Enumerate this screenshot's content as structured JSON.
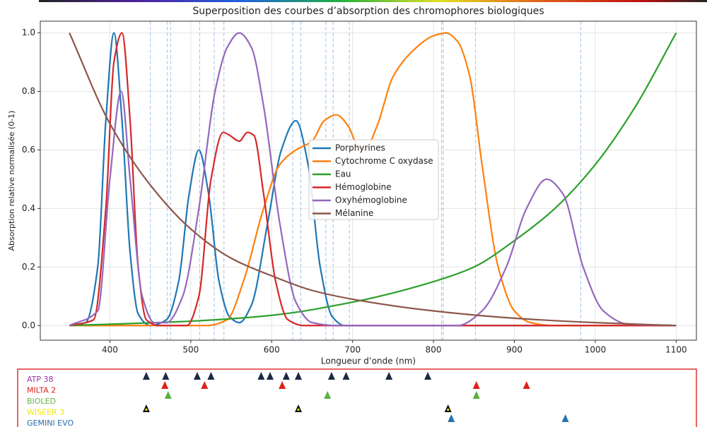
{
  "chart_data": [
    {
      "type": "line",
      "title": "Superposition des courbes d’absorption des chromophores biologiques",
      "xlabel": "Longueur d’onde (nm)",
      "ylabel": "Absorption relative normalisée (0-1)",
      "xlim": [
        314,
        1125
      ],
      "ylim": [
        -0.05,
        1.04
      ],
      "xticks": [
        400,
        500,
        600,
        700,
        800,
        900,
        1000,
        1100
      ],
      "yticks": [
        {
          "value": 0,
          "label": "0.0"
        },
        0.2,
        0.4,
        0.6,
        0.8,
        {
          "value": 1,
          "label": "1.0"
        }
      ],
      "grid": true,
      "legend": "center",
      "reference_lines": {
        "color": "#9fc3e6",
        "x": [
          450,
          471,
          475,
          511,
          529,
          541,
          626,
          636,
          667,
          676,
          696,
          810,
          812,
          852,
          982
        ]
      },
      "series": [
        {
          "name": "Porphyrines",
          "color": "#1f77b4",
          "x": [
            350,
            370,
            385,
            395,
            405,
            415,
            425,
            435,
            450,
            470,
            485,
            498,
            510,
            522,
            535,
            548,
            560,
            575,
            595,
            612,
            630,
            645,
            660,
            675,
            690,
            1100
          ],
          "values": [
            0,
            0.01,
            0.2,
            0.7,
            1.0,
            0.7,
            0.25,
            0.04,
            0,
            0.02,
            0.15,
            0.45,
            0.6,
            0.45,
            0.15,
            0.03,
            0.01,
            0.07,
            0.35,
            0.6,
            0.7,
            0.55,
            0.2,
            0.03,
            0,
            0
          ]
        },
        {
          "name": "Cytochrome C oxydase",
          "color": "#ff7f0e",
          "x": [
            350,
            520,
            545,
            565,
            590,
            610,
            630,
            650,
            665,
            680,
            695,
            705,
            715,
            730,
            750,
            775,
            800,
            815,
            830,
            845,
            860,
            880,
            900,
            920,
            950,
            1100
          ],
          "values": [
            0,
            0,
            0.02,
            0.15,
            0.4,
            0.55,
            0.6,
            0.63,
            0.7,
            0.72,
            0.68,
            0.62,
            0.6,
            0.68,
            0.85,
            0.94,
            0.99,
            1.0,
            0.97,
            0.85,
            0.55,
            0.2,
            0.05,
            0.01,
            0,
            0
          ]
        },
        {
          "name": "Eau",
          "color": "#2ca02c",
          "x": [
            350,
            500,
            600,
            700,
            800,
            850,
            900,
            950,
            1000,
            1050,
            1100
          ],
          "values": [
            0,
            0.015,
            0.035,
            0.08,
            0.15,
            0.2,
            0.29,
            0.4,
            0.55,
            0.75,
            1.0
          ]
        },
        {
          "name": "Hémoglobine",
          "color": "#d62728",
          "x": [
            350,
            380,
            395,
            405,
            415,
            425,
            435,
            445,
            460,
            495,
            510,
            525,
            540,
            548,
            560,
            570,
            578,
            590,
            605,
            620,
            640,
            1100
          ],
          "values": [
            0,
            0.02,
            0.4,
            0.9,
            1.0,
            0.7,
            0.2,
            0.02,
            0,
            0,
            0.1,
            0.5,
            0.66,
            0.65,
            0.63,
            0.66,
            0.65,
            0.45,
            0.15,
            0.02,
            0,
            0
          ]
        },
        {
          "name": "Oxyhémoglobine",
          "color": "#9467bd",
          "x": [
            350,
            385,
            400,
            414,
            425,
            440,
            455,
            470,
            490,
            510,
            530,
            545,
            560,
            575,
            590,
            610,
            630,
            650,
            680,
            830,
            860,
            890,
            915,
            940,
            960,
            985,
            1010,
            1040,
            1100
          ],
          "values": [
            0,
            0.05,
            0.5,
            0.8,
            0.5,
            0.1,
            0.01,
            0.01,
            0.1,
            0.4,
            0.8,
            0.95,
            1.0,
            0.95,
            0.75,
            0.35,
            0.08,
            0.01,
            0,
            0,
            0.05,
            0.2,
            0.4,
            0.5,
            0.45,
            0.2,
            0.05,
            0.005,
            0
          ]
        },
        {
          "name": "Mélanine",
          "color": "#8c564b",
          "x": [
            350,
            400,
            450,
            500,
            550,
            600,
            650,
            700,
            800,
            900,
            1000,
            1100
          ],
          "values": [
            1.0,
            0.69,
            0.48,
            0.33,
            0.23,
            0.17,
            0.12,
            0.09,
            0.05,
            0.025,
            0.01,
            0
          ]
        }
      ]
    },
    {
      "type": "markers",
      "border_color": "#e03030",
      "devices": [
        {
          "name": "ATP 38",
          "label_color": "#9b30a0",
          "marker_color": "#1a2a44",
          "x": [
            445,
            469,
            508,
            525,
            587,
            598,
            618,
            633,
            674,
            692,
            745,
            793
          ]
        },
        {
          "name": "MILTA 2",
          "label_color": "#e0201a",
          "marker_color": "#e0201a",
          "x": [
            468,
            517,
            613,
            853,
            915
          ]
        },
        {
          "name": "BIOLED",
          "label_color": "#6ab04c",
          "marker_color": "#5ab040",
          "x": [
            472,
            669,
            853
          ]
        },
        {
          "name": "WISEER 3",
          "label_color": "#f2e600",
          "marker_color": "#111111",
          "x": [
            445,
            633,
            818
          ]
        },
        {
          "name": "GEMINI EVO",
          "label_color": "#2a6ab0",
          "marker_color": "#2a70b0",
          "x": [
            822,
            963
          ]
        }
      ]
    }
  ]
}
